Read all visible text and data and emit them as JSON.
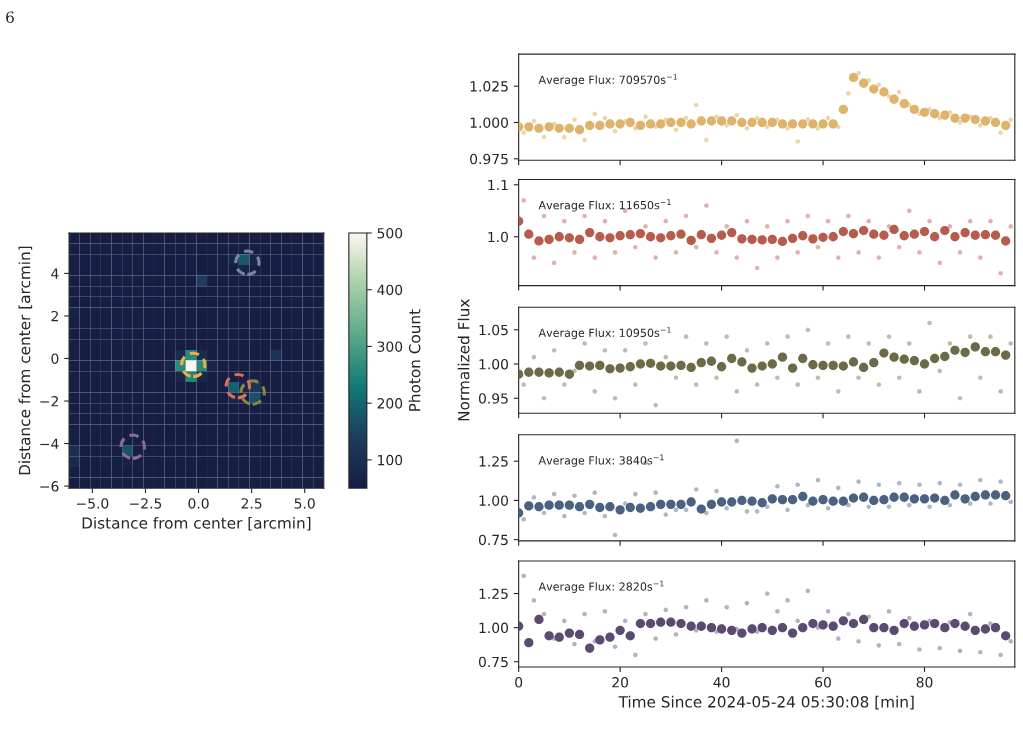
{
  "chart_data": [
    {
      "type": "heatmap",
      "xlabel": "Distance from center [arcmin]",
      "ylabel": "Distance from center [arcmin]",
      "clabel": "Photon Count",
      "annotations": [
        "6"
      ],
      "x": [
        -5.85,
        -5.35,
        -4.85,
        -4.35,
        -3.85,
        -3.35,
        -2.85,
        -2.35,
        -1.85,
        -1.35,
        -0.85,
        -0.35,
        0.15,
        0.65,
        1.15,
        1.65,
        2.15,
        2.65,
        3.15,
        3.65,
        4.15,
        4.65,
        5.15,
        5.65
      ],
      "y": [
        5.65,
        5.15,
        4.65,
        4.15,
        3.65,
        3.15,
        2.65,
        2.15,
        1.65,
        1.15,
        0.65,
        0.15,
        -0.35,
        -0.85,
        -1.35,
        -1.85,
        -2.35,
        -2.85,
        -3.35,
        -3.85,
        -4.35,
        -4.85,
        -5.35,
        -5.85
      ],
      "cells": [
        [
          52,
          52,
          52,
          52,
          52,
          52,
          52,
          52,
          52,
          52,
          52,
          52,
          52,
          52,
          52,
          52,
          52,
          52,
          52,
          52,
          52,
          52,
          52,
          52
        ],
        [
          52,
          52,
          52,
          52,
          52,
          52,
          52,
          52,
          52,
          52,
          52,
          52,
          52,
          52,
          52,
          52,
          52,
          52,
          52,
          52,
          52,
          52,
          52,
          52
        ],
        [
          52,
          52,
          52,
          52,
          52,
          52,
          52,
          52,
          52,
          52,
          52,
          52,
          52,
          52,
          52,
          70,
          180,
          70,
          52,
          52,
          52,
          52,
          52,
          52
        ],
        [
          52,
          52,
          52,
          52,
          52,
          52,
          52,
          52,
          52,
          52,
          52,
          52,
          52,
          52,
          52,
          52,
          75,
          52,
          52,
          52,
          52,
          52,
          52,
          52
        ],
        [
          52,
          52,
          52,
          52,
          52,
          52,
          52,
          52,
          52,
          52,
          52,
          52,
          140,
          52,
          52,
          52,
          52,
          52,
          52,
          52,
          52,
          52,
          52,
          52
        ],
        [
          52,
          52,
          52,
          52,
          52,
          52,
          52,
          52,
          52,
          52,
          52,
          52,
          52,
          52,
          52,
          52,
          52,
          52,
          52,
          52,
          52,
          52,
          52,
          52
        ],
        [
          52,
          52,
          52,
          52,
          52,
          52,
          52,
          52,
          52,
          52,
          52,
          52,
          52,
          52,
          52,
          52,
          52,
          52,
          52,
          52,
          52,
          52,
          52,
          52
        ],
        [
          65,
          52,
          52,
          52,
          52,
          52,
          52,
          52,
          52,
          52,
          52,
          52,
          52,
          52,
          52,
          52,
          52,
          52,
          52,
          52,
          52,
          52,
          52,
          52
        ],
        [
          52,
          52,
          52,
          52,
          52,
          52,
          52,
          52,
          52,
          52,
          52,
          52,
          52,
          52,
          52,
          52,
          52,
          52,
          52,
          52,
          52,
          52,
          52,
          52
        ],
        [
          52,
          52,
          52,
          52,
          52,
          52,
          52,
          52,
          52,
          52,
          52,
          52,
          52,
          52,
          52,
          52,
          52,
          52,
          52,
          52,
          52,
          52,
          52,
          52
        ],
        [
          52,
          52,
          52,
          52,
          52,
          52,
          52,
          52,
          52,
          52,
          52,
          52,
          52,
          52,
          52,
          52,
          52,
          52,
          52,
          52,
          52,
          52,
          52,
          52
        ],
        [
          52,
          52,
          52,
          52,
          52,
          52,
          52,
          52,
          52,
          52,
          90,
          260,
          90,
          52,
          52,
          52,
          52,
          52,
          52,
          110,
          52,
          52,
          52,
          52
        ],
        [
          52,
          52,
          52,
          52,
          52,
          52,
          52,
          52,
          52,
          70,
          260,
          500,
          260,
          70,
          52,
          52,
          52,
          52,
          52,
          52,
          52,
          52,
          52,
          52
        ],
        [
          52,
          52,
          52,
          52,
          52,
          52,
          52,
          52,
          52,
          52,
          80,
          250,
          80,
          52,
          52,
          52,
          52,
          52,
          52,
          52,
          52,
          52,
          52,
          52
        ],
        [
          52,
          52,
          52,
          52,
          52,
          52,
          52,
          52,
          52,
          52,
          52,
          52,
          52,
          52,
          52,
          190,
          75,
          120,
          52,
          52,
          52,
          52,
          52,
          52
        ],
        [
          52,
          52,
          52,
          52,
          52,
          52,
          52,
          52,
          52,
          52,
          52,
          52,
          52,
          52,
          52,
          70,
          52,
          170,
          52,
          52,
          52,
          52,
          52,
          52
        ],
        [
          52,
          52,
          52,
          52,
          52,
          52,
          52,
          52,
          52,
          52,
          52,
          52,
          52,
          52,
          52,
          52,
          52,
          52,
          52,
          52,
          52,
          52,
          52,
          52
        ],
        [
          52,
          52,
          52,
          52,
          52,
          52,
          52,
          52,
          52,
          52,
          52,
          52,
          52,
          52,
          52,
          52,
          52,
          52,
          52,
          52,
          52,
          52,
          52,
          52
        ],
        [
          52,
          52,
          52,
          52,
          52,
          52,
          52,
          52,
          52,
          52,
          52,
          52,
          52,
          52,
          52,
          52,
          52,
          52,
          52,
          52,
          52,
          52,
          52,
          52
        ],
        [
          52,
          52,
          52,
          52,
          52,
          52,
          52,
          52,
          52,
          52,
          52,
          52,
          52,
          52,
          52,
          52,
          52,
          52,
          52,
          52,
          52,
          52,
          52,
          52
        ],
        [
          100,
          52,
          52,
          52,
          52,
          170,
          52,
          52,
          52,
          52,
          52,
          52,
          52,
          52,
          52,
          52,
          52,
          52,
          52,
          52,
          52,
          52,
          52,
          52
        ],
        [
          90,
          52,
          52,
          52,
          52,
          65,
          52,
          52,
          52,
          52,
          52,
          52,
          52,
          52,
          52,
          52,
          52,
          52,
          52,
          52,
          52,
          52,
          52,
          52
        ],
        [
          52,
          52,
          52,
          52,
          52,
          52,
          52,
          52,
          52,
          52,
          52,
          52,
          52,
          52,
          52,
          52,
          52,
          52,
          52,
          52,
          52,
          52,
          52,
          52
        ],
        [
          52,
          52,
          52,
          52,
          52,
          52,
          52,
          52,
          52,
          52,
          52,
          52,
          52,
          52,
          52,
          52,
          52,
          52,
          52,
          52,
          52,
          52,
          52,
          52
        ]
      ],
      "clim": [
        50,
        500
      ],
      "cticks": [
        100,
        200,
        300,
        400,
        500
      ],
      "xlim": [
        -6.1,
        5.9
      ],
      "ylim": [
        -6.1,
        5.9
      ],
      "xticks": [
        {
          "value": -5,
          "label": "−5.0"
        },
        {
          "value": -2.5,
          "label": "−2.5"
        },
        {
          "value": 0,
          "label": "0.0"
        },
        {
          "value": 2.5,
          "label": "2.5"
        },
        {
          "value": 5,
          "label": "5.0"
        }
      ],
      "yticks": [
        {
          "value": -6,
          "label": "−6"
        },
        {
          "value": -4,
          "label": "−4"
        },
        {
          "value": -2,
          "label": "−2"
        },
        {
          "value": 0,
          "label": "0"
        },
        {
          "value": 2,
          "label": "2"
        },
        {
          "value": 4,
          "label": "4"
        }
      ],
      "series": [
        {
          "type": "scatter",
          "x": [
            -0.25,
            1.85,
            2.55,
            2.3,
            -3.1
          ],
          "values": [
            -0.3,
            -1.3,
            -1.6,
            4.5,
            -4.15
          ],
          "colors": [
            "#e8b04c",
            "#d8705a",
            "#8c8448",
            "#7a88a8",
            "#8a6c98"
          ]
        }
      ]
    },
    {
      "type": "scatter",
      "marker": "circle",
      "tick_labels": "y",
      "annotations": [
        "Average Flux: 709570s$^{−1}$"
      ],
      "xlim": [
        0,
        97.8
      ],
      "xticks": [
        0,
        20,
        40,
        60,
        80
      ],
      "ylim": [
        0.974,
        1.047
      ],
      "yticks": [
        0.975,
        {
          "value": 1.0,
          "label": "1.000"
        },
        1.025
      ],
      "x": [
        0,
        2,
        4,
        6,
        8,
        10,
        12,
        14,
        16,
        18,
        20,
        22,
        24,
        26,
        28,
        30,
        32,
        34,
        36,
        38,
        40,
        42,
        44,
        46,
        48,
        50,
        52,
        54,
        56,
        58,
        60,
        62,
        64,
        66,
        68,
        70,
        72,
        74,
        76,
        78,
        80,
        82,
        84,
        86,
        88,
        90,
        92,
        94,
        96
      ],
      "series": [
        {
          "color": "#e9cf9a",
          "x": [
            1,
            3,
            5,
            7,
            9,
            11,
            13,
            15,
            17,
            19,
            21,
            23,
            25,
            27,
            29,
            31,
            33,
            35,
            37,
            39,
            41,
            43,
            45,
            47,
            49,
            51,
            53,
            55,
            57,
            59,
            61,
            63,
            65,
            67,
            69,
            71,
            73,
            75,
            77,
            79,
            81,
            83,
            85,
            87,
            89,
            91,
            93,
            95,
            97
          ],
          "values": [
            0.993,
            1.001,
            0.99,
            0.999,
            0.99,
            1.002,
            0.988,
            1.006,
            1.003,
            0.994,
            1.001,
            0.996,
            1.004,
            0.997,
            1.002,
            0.995,
            1.003,
            1.012,
            0.988,
            1.004,
            0.998,
            1.005,
            0.996,
            1.003,
            0.997,
            1.002,
            0.996,
            0.987,
            1.002,
            0.996,
            1.003,
            0.997,
            1.02,
            1.034,
            1.029,
            1.026,
            1.018,
            1.021,
            1.012,
            1.006,
            1.009,
            1.003,
            1.007,
            1.0,
            1.004,
            0.998,
            1.003,
            0.993,
            1.002
          ]
        },
        {
          "color": "#deb46c",
          "values": [
            0.997,
            0.997,
            0.996,
            0.997,
            0.996,
            0.996,
            0.995,
            0.998,
            0.998,
            0.999,
            0.999,
            1.0,
            0.998,
            0.999,
            0.999,
            1.0,
            1.0,
            0.999,
            1.001,
            1.001,
            1.001,
            1.001,
            1.0,
            1.0,
            1.0,
            1.0,
            0.999,
            0.999,
            0.999,
            0.999,
            0.999,
            0.999,
            1.009,
            1.031,
            1.027,
            1.023,
            1.021,
            1.016,
            1.013,
            1.009,
            1.007,
            1.006,
            1.005,
            1.003,
            1.003,
            1.002,
            1.001,
            1.0,
            0.998
          ]
        }
      ]
    },
    {
      "type": "scatter",
      "marker": "circle",
      "tick_labels": "y",
      "annotations": [
        "Average Flux: 11650s$^{−1}$"
      ],
      "xlim": [
        0,
        97.8
      ],
      "xticks": [
        0,
        20,
        40,
        60,
        80
      ],
      "ylim": [
        0.906,
        1.11
      ],
      "yticks": [
        {
          "value": 1.0,
          "label": "1.0"
        },
        1.1
      ],
      "x": [
        0,
        2,
        4,
        6,
        8,
        10,
        12,
        14,
        16,
        18,
        20,
        22,
        24,
        26,
        28,
        30,
        32,
        34,
        36,
        38,
        40,
        42,
        44,
        46,
        48,
        50,
        52,
        54,
        56,
        58,
        60,
        62,
        64,
        66,
        68,
        70,
        72,
        74,
        76,
        78,
        80,
        82,
        84,
        86,
        88,
        90,
        92,
        94,
        96
      ],
      "series": [
        {
          "color": "#d9a59c",
          "x": [
            1,
            3,
            5,
            7,
            9,
            11,
            13,
            15,
            17,
            19,
            21,
            23,
            25,
            27,
            29,
            31,
            33,
            35,
            37,
            39,
            41,
            43,
            45,
            47,
            49,
            51,
            53,
            55,
            57,
            59,
            61,
            63,
            65,
            67,
            69,
            71,
            73,
            75,
            77,
            79,
            81,
            83,
            85,
            87,
            89,
            91,
            93,
            95,
            97
          ],
          "values": [
            1.07,
            0.96,
            1.04,
            0.95,
            1.03,
            0.97,
            1.04,
            0.96,
            1.03,
            0.97,
            1.05,
            0.98,
            1.02,
            0.96,
            1.03,
            0.97,
            1.04,
            0.98,
            1.06,
            0.97,
            1.02,
            0.96,
            1.03,
            0.94,
            1.02,
            0.96,
            1.03,
            0.97,
            1.04,
            0.98,
            1.03,
            0.96,
            1.04,
            0.97,
            1.03,
            0.96,
            1.02,
            0.98,
            1.05,
            0.97,
            1.03,
            0.95,
            1.02,
            0.97,
            1.03,
            0.96,
            1.03,
            0.93,
            1.02
          ]
        },
        {
          "color": "#b75c4d",
          "values": [
            1.03,
            1.005,
            0.992,
            0.995,
            1.0,
            0.998,
            0.995,
            1.008,
            1.0,
            0.998,
            1.002,
            1.004,
            1.006,
            1.0,
            0.998,
            1.002,
            1.005,
            0.993,
            1.004,
            0.997,
            1.003,
            1.008,
            0.996,
            0.995,
            0.994,
            0.995,
            0.991,
            0.997,
            1.002,
            0.996,
            0.999,
            1.0,
            1.01,
            1.006,
            1.012,
            1.005,
            1.003,
            1.014,
            1.002,
            1.005,
            1.01,
            1.0,
            1.012,
            1.0,
            1.008,
            1.003,
            1.004,
            1.003,
            0.992
          ]
        }
      ]
    },
    {
      "type": "scatter",
      "marker": "circle",
      "tick_labels": "y",
      "ylabel": "Normalized Flux",
      "annotations": [
        "Average Flux: 10950s$^{−1}$"
      ],
      "xlim": [
        0,
        97.8
      ],
      "xticks": [
        0,
        20,
        40,
        60,
        80
      ],
      "ylim": [
        0.928,
        1.083
      ],
      "yticks": [
        0.95,
        {
          "value": 1.0,
          "label": "1.00"
        },
        1.05
      ],
      "x": [
        0,
        2,
        4,
        6,
        8,
        10,
        12,
        14,
        16,
        18,
        20,
        22,
        24,
        26,
        28,
        30,
        32,
        34,
        36,
        38,
        40,
        42,
        44,
        46,
        48,
        50,
        52,
        54,
        56,
        58,
        60,
        62,
        64,
        66,
        68,
        70,
        72,
        74,
        76,
        78,
        80,
        82,
        84,
        86,
        88,
        90,
        92,
        94,
        96
      ],
      "series": [
        {
          "color": "#b5b09c",
          "x": [
            1,
            3,
            5,
            7,
            9,
            11,
            13,
            15,
            17,
            19,
            21,
            23,
            25,
            27,
            29,
            31,
            33,
            35,
            37,
            39,
            41,
            43,
            45,
            47,
            49,
            51,
            53,
            55,
            57,
            59,
            61,
            63,
            65,
            67,
            69,
            71,
            73,
            75,
            77,
            79,
            81,
            83,
            85,
            87,
            89,
            91,
            93,
            95,
            97
          ],
          "values": [
            0.97,
            1.01,
            0.95,
            1.02,
            0.97,
            0.99,
            1.03,
            0.96,
            1.02,
            0.95,
            1.02,
            0.97,
            1.03,
            0.94,
            1.01,
            0.98,
            1.04,
            0.97,
            1.03,
            0.98,
            1.04,
            0.96,
            1.02,
            0.97,
            1.03,
            0.98,
            1.04,
            0.97,
            1.05,
            0.98,
            1.03,
            0.96,
            1.04,
            0.98,
            1.03,
            0.97,
            1.04,
            0.98,
            1.03,
            0.96,
            1.06,
            0.99,
            1.03,
            0.95,
            1.04,
            0.98,
            1.04,
            0.96,
            1.03
          ]
        },
        {
          "color": "#6d6a47",
          "values": [
            0.985,
            0.988,
            0.988,
            0.987,
            0.988,
            0.985,
            0.998,
            0.997,
            0.998,
            0.993,
            0.994,
            0.996,
            1.0,
            1.001,
            0.997,
            0.997,
            0.998,
            0.995,
            1.002,
            1.004,
            0.996,
            1.008,
            1.003,
            0.994,
            0.997,
            1.0,
            1.01,
            0.994,
            1.008,
            0.999,
            0.998,
            0.998,
            0.997,
            1.003,
            0.995,
            1.002,
            1.016,
            1.01,
            1.007,
            1.005,
            1.0,
            1.008,
            1.011,
            1.02,
            1.017,
            1.025,
            1.018,
            1.018,
            1.013
          ]
        }
      ]
    },
    {
      "type": "scatter",
      "marker": "circle",
      "tick_labels": "y",
      "annotations": [
        "Average Flux: 3840s$^{−1}$"
      ],
      "xlim": [
        0,
        97.8
      ],
      "xticks": [
        0,
        20,
        40,
        60,
        80
      ],
      "ylim": [
        0.742,
        1.418
      ],
      "yticks": [
        0.75,
        {
          "value": 1.0,
          "label": "1.00"
        },
        1.25
      ],
      "x": [
        0,
        2,
        4,
        6,
        8,
        10,
        12,
        14,
        16,
        18,
        20,
        22,
        24,
        26,
        28,
        30,
        32,
        34,
        36,
        38,
        40,
        42,
        44,
        46,
        48,
        50,
        52,
        54,
        56,
        58,
        60,
        62,
        64,
        66,
        68,
        70,
        72,
        74,
        76,
        78,
        80,
        82,
        84,
        86,
        88,
        90,
        92,
        94,
        96
      ],
      "series": [
        {
          "color": "#9dabbf",
          "x": [
            1,
            3,
            5,
            7,
            9,
            11,
            13,
            15,
            17,
            19,
            21,
            23,
            25,
            27,
            29,
            31,
            33,
            35,
            37,
            39,
            41,
            43,
            45,
            47,
            49,
            51,
            53,
            55,
            57,
            59,
            61,
            63,
            65,
            67,
            69,
            71,
            73,
            75,
            77,
            79,
            81,
            83,
            85,
            87,
            89,
            91,
            93,
            95,
            97
          ],
          "values": [
            0.88,
            1.02,
            0.92,
            1.04,
            0.9,
            1.03,
            0.92,
            1.05,
            0.9,
            0.78,
            0.98,
            1.04,
            1.24,
            1.05,
            0.91,
            0.94,
            0.94,
            1.07,
            0.92,
            1.06,
            0.95,
            1.38,
            0.93,
            0.93,
            0.96,
            1.09,
            0.94,
            1.1,
            0.97,
            1.13,
            0.95,
            1.08,
            0.97,
            1.12,
            0.96,
            1.1,
            0.96,
            1.11,
            0.97,
            1.1,
            0.96,
            1.11,
            0.97,
            1.1,
            0.98,
            1.13,
            0.98,
            1.12,
            0.99
          ]
        },
        {
          "color": "#4b6181",
          "values": [
            0.92,
            0.965,
            0.96,
            0.97,
            0.97,
            0.97,
            0.96,
            0.975,
            0.955,
            0.96,
            0.94,
            0.955,
            0.95,
            0.96,
            0.975,
            0.975,
            0.975,
            0.99,
            0.945,
            0.975,
            0.99,
            0.99,
            1.0,
            0.995,
            0.985,
            1.01,
            1.005,
            1.005,
            1.025,
            0.995,
            1.005,
            0.995,
            0.995,
            1.015,
            1.02,
            1.0,
            1.005,
            1.02,
            1.02,
            1.01,
            1.01,
            1.015,
            1.0,
            1.035,
            1.01,
            1.025,
            1.035,
            1.035,
            1.03
          ]
        }
      ]
    },
    {
      "type": "scatter",
      "marker": "circle",
      "xlabel": "Time Since 2024-05-24 05:30:08 [min]",
      "annotations": [
        "Average Flux: 2820s$^{−1}$"
      ],
      "xlim": [
        0,
        97.8
      ],
      "xticks": [
        0,
        20,
        40,
        60,
        80
      ],
      "ylim": [
        0.711,
        1.489
      ],
      "yticks": [
        0.75,
        {
          "value": 1.0,
          "label": "1.00"
        },
        1.25
      ],
      "x": [
        0,
        2,
        4,
        6,
        8,
        10,
        12,
        14,
        16,
        18,
        20,
        22,
        24,
        26,
        28,
        30,
        32,
        34,
        36,
        38,
        40,
        42,
        44,
        46,
        48,
        50,
        52,
        54,
        56,
        58,
        60,
        62,
        64,
        66,
        68,
        70,
        72,
        74,
        76,
        78,
        80,
        82,
        84,
        86,
        88,
        90,
        92,
        94,
        96
      ],
      "series": [
        {
          "color": "#aca0bb",
          "x": [
            1,
            3,
            5,
            7,
            9,
            11,
            13,
            15,
            17,
            19,
            21,
            23,
            25,
            27,
            29,
            31,
            33,
            35,
            37,
            39,
            41,
            43,
            45,
            47,
            49,
            51,
            53,
            55,
            57,
            59,
            61,
            63,
            65,
            67,
            69,
            71,
            73,
            75,
            77,
            79,
            81,
            83,
            85,
            87,
            89,
            91,
            93,
            95,
            97
          ],
          "values": [
            1.38,
            1.2,
            1.1,
            0.92,
            1.05,
            0.88,
            1.1,
            0.9,
            1.12,
            0.86,
            1.05,
            0.8,
            1.1,
            0.92,
            1.13,
            0.95,
            1.15,
            0.98,
            1.2,
            0.97,
            1.15,
            0.99,
            1.18,
            0.97,
            1.25,
            1.12,
            1.2,
            1.05,
            1.27,
            1.0,
            1.12,
            0.92,
            1.1,
            0.9,
            1.08,
            0.87,
            1.12,
            0.88,
            1.07,
            0.84,
            1.05,
            0.85,
            1.04,
            0.83,
            1.1,
            0.82,
            1.03,
            0.8,
            0.9
          ]
        },
        {
          "color": "#5c4a71",
          "values": [
            1.01,
            0.89,
            1.06,
            0.94,
            0.93,
            0.96,
            0.95,
            0.85,
            0.91,
            0.93,
            0.98,
            0.94,
            1.03,
            1.03,
            1.04,
            1.04,
            1.03,
            1.01,
            1.01,
            1.0,
            0.99,
            0.98,
            0.96,
            0.99,
            1.0,
            0.98,
            1.0,
            0.96,
            1.0,
            1.03,
            1.02,
            1.01,
            1.05,
            1.03,
            1.06,
            1.0,
            1.0,
            0.98,
            1.03,
            1.01,
            1.02,
            1.03,
            1.0,
            1.03,
            1.01,
            0.98,
            0.99,
            1.0,
            0.94
          ]
        }
      ]
    }
  ]
}
